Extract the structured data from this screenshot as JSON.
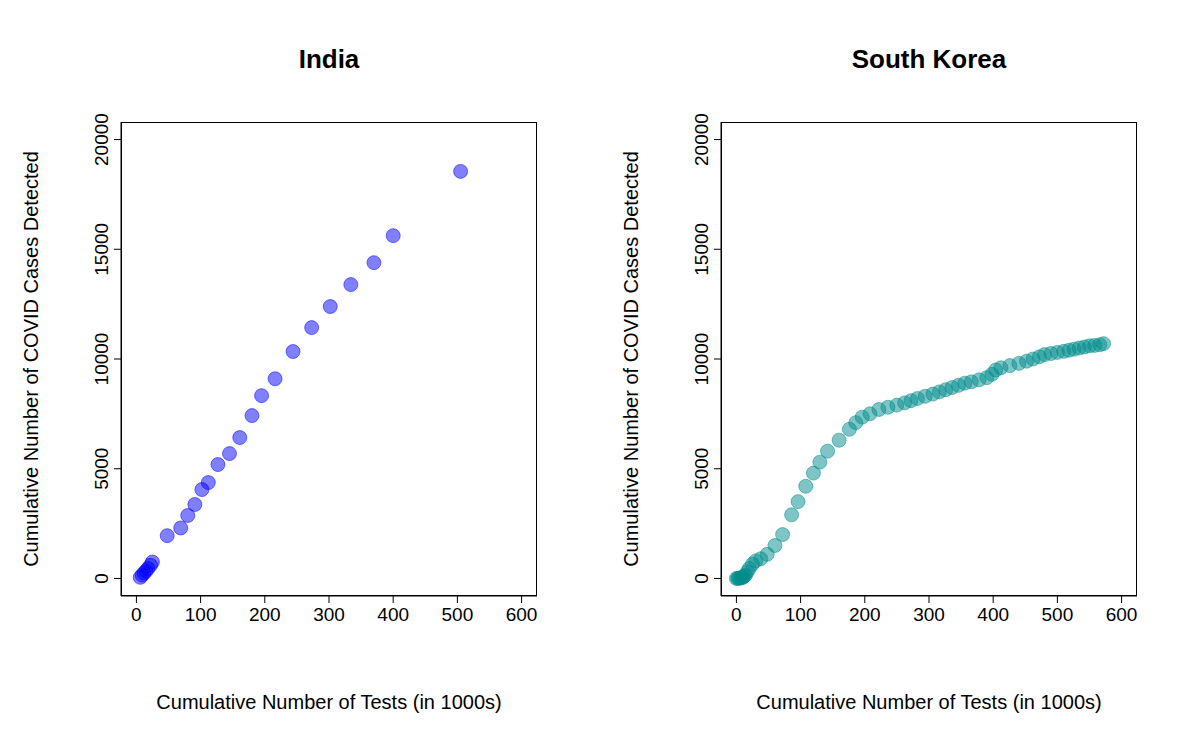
{
  "chart_data": [
    {
      "type": "scatter",
      "title": "India",
      "x_label": "Cumulative Number of Tests (in 1000s)",
      "y_label": "Cumulative Number of COVID Cases Detected",
      "x": [
        6,
        9,
        12,
        15,
        18,
        22,
        25,
        48,
        69,
        80,
        91,
        102,
        112,
        127,
        145,
        161,
        180,
        195,
        216,
        244,
        273,
        302,
        334,
        370,
        400,
        505
      ],
      "values": [
        50,
        150,
        250,
        350,
        450,
        600,
        750,
        1950,
        2300,
        2870,
        3370,
        4050,
        4370,
        5190,
        5690,
        6420,
        7420,
        8330,
        9100,
        10340,
        11430,
        12390,
        13390,
        14390,
        15620,
        18550
      ],
      "color": "#0000ff",
      "marker": "circle",
      "grid": false,
      "xlim": [
        -24,
        624
      ],
      "ylim": [
        -800,
        20800
      ],
      "xticks": [
        0,
        100,
        200,
        300,
        400,
        500,
        600
      ],
      "yticks": [
        0,
        5000,
        10000,
        15000,
        20000
      ]
    },
    {
      "type": "scatter",
      "title": "South Korea",
      "x_label": "Cumulative Number of Tests (in 1000s)",
      "y_label": "Cumulative Number of COVID Cases Detected",
      "x": [
        0,
        2,
        4,
        6,
        8,
        10,
        12,
        14,
        17,
        20,
        25,
        30,
        38,
        48,
        60,
        72,
        86,
        96,
        108,
        120,
        130,
        142,
        160,
        176,
        186,
        196,
        208,
        222,
        236,
        250,
        262,
        272,
        282,
        294,
        306,
        316,
        326,
        336,
        346,
        356,
        366,
        378,
        390,
        398,
        404,
        412,
        426,
        440,
        452,
        462,
        472,
        480,
        490,
        500,
        510,
        518,
        526,
        534,
        542,
        550,
        558,
        566,
        572
      ],
      "values": [
        0,
        5,
        10,
        20,
        30,
        50,
        100,
        150,
        300,
        450,
        650,
        800,
        900,
        1100,
        1500,
        2000,
        2900,
        3500,
        4200,
        4800,
        5300,
        5800,
        6300,
        6800,
        7100,
        7350,
        7500,
        7700,
        7800,
        7900,
        8000,
        8100,
        8200,
        8300,
        8400,
        8500,
        8600,
        8700,
        8800,
        8900,
        8960,
        9050,
        9150,
        9300,
        9500,
        9600,
        9700,
        9800,
        9900,
        10000,
        10100,
        10200,
        10250,
        10300,
        10350,
        10400,
        10450,
        10500,
        10550,
        10600,
        10620,
        10650,
        10700
      ],
      "color": "#008b8b",
      "marker": "circle",
      "grid": false,
      "xlim": [
        -24,
        624
      ],
      "ylim": [
        -800,
        20800
      ],
      "xticks": [
        0,
        100,
        200,
        300,
        400,
        500,
        600
      ],
      "yticks": [
        0,
        5000,
        10000,
        15000,
        20000
      ]
    }
  ]
}
